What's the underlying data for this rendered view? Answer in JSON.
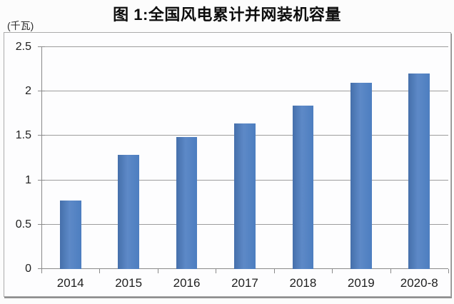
{
  "page": {
    "title": "图 1:全国风电累计并网装机容量",
    "unit_label": "(千瓦)"
  },
  "chart_data": {
    "type": "bar",
    "title": "图 1:全国风电累计并网装机容量",
    "xlabel": "",
    "ylabel": "(千瓦)",
    "categories": [
      "2014",
      "2015",
      "2016",
      "2017",
      "2018",
      "2019",
      "2020-8"
    ],
    "values": [
      0.77,
      1.29,
      1.49,
      1.64,
      1.84,
      2.1,
      2.2
    ],
    "ylim": [
      0,
      2.5
    ],
    "yticks": [
      0,
      0.5,
      1,
      1.5,
      2,
      2.5
    ],
    "grid": true,
    "legend_position": "none",
    "bar_color": "#4d7ec0"
  },
  "colors": {
    "bar": "#4d7ec0",
    "gridline": "#9d9d9d",
    "axis": "#8a8a8a",
    "frame_border": "#ababab",
    "frame_shadow": "#8f8f8f",
    "text": "#1f1f1f",
    "background": "#fcfcfc",
    "plot_background": "#fdfdfe"
  }
}
